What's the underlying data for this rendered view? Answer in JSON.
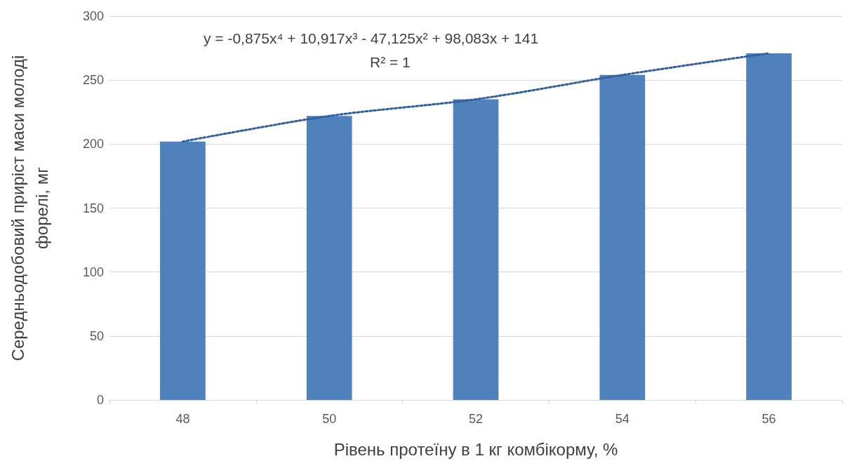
{
  "chart_data": {
    "type": "bar",
    "xlabel": "Рівень протеїну в 1 кг комбікорму, %",
    "ylabel": "Середньодобовий приріст маси молоді форелі, мг",
    "categories": [
      "48",
      "50",
      "52",
      "54",
      "56"
    ],
    "series": [
      {
        "color": "#4f81bd",
        "values": [
          202,
          222,
          235,
          254,
          271
        ]
      },
      {
        "type": "line",
        "color": "#2f5f9e",
        "line_style": "dotted",
        "marker": "none",
        "x": [
          "48",
          "50",
          "52",
          "54",
          "56"
        ],
        "values": [
          202,
          222,
          235,
          254,
          271
        ]
      }
    ],
    "ylim": [
      0,
      300
    ],
    "yticks": [
      0,
      50,
      100,
      150,
      200,
      250,
      300
    ],
    "grid": "y",
    "annotations": [
      "y = -0,875x⁴ + 10,917x³ - 47,125x² + 98,083x + 141",
      "R² = 1"
    ]
  }
}
